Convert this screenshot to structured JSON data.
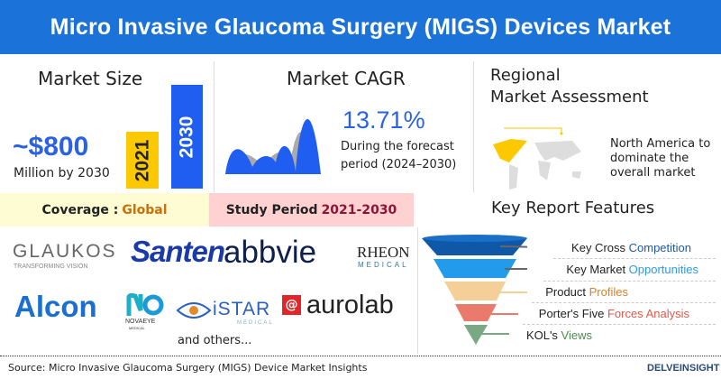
{
  "title": "Micro Invasive Glaucoma Surgery (MIGS) Devices Market",
  "market_size": {
    "heading": "Market Size",
    "value": "~$800",
    "subtitle": "Million by 2030",
    "bar_2021": "2021",
    "bar_2030": "2030"
  },
  "cagr": {
    "heading": "Market CAGR",
    "value": "13.71%",
    "line1": "During the forecast",
    "line2": "period (2024–2030)"
  },
  "regional": {
    "heading1": "Regional",
    "heading2": "Market Assessment",
    "line1": "North America to",
    "line2": "dominate the",
    "line3": "overall market"
  },
  "coverage": {
    "label": "Coverage : ",
    "value": "Global"
  },
  "study": {
    "label": "Study Period ",
    "value": "2021-2030"
  },
  "features": {
    "heading": "Key Report Features",
    "items": [
      {
        "a": "Key Cross ",
        "b": "Competition",
        "color": "#1a5ba8"
      },
      {
        "a": "Key Market ",
        "b": "Opportunities",
        "color": "#2a9be8"
      },
      {
        "a": "Product ",
        "b": "Profiles",
        "color": "#d9822b"
      },
      {
        "a": "Porter's Five ",
        "b": "Forces Analysis",
        "color": "#e4584a"
      },
      {
        "a": "KOL's ",
        "b": "Views",
        "color": "#4d8a4f"
      }
    ]
  },
  "logos": {
    "glaukos": "GLAUKOS",
    "glaukos_tag": "TRANSFORMING VISION",
    "santen": "Santen",
    "abbvie": "abbvie",
    "rheon": "RHEON",
    "rheon_sub": "MEDICAL",
    "alcon": "Alcon",
    "novaeye": "NOVAEYE",
    "novaeye_sub": "MEDICAL",
    "istar": "iSTAR",
    "istar_sub": "MEDICAL",
    "aurolab": "aurolab",
    "others": "and others..."
  },
  "source": "Source: Micro Invasive Glaucoma Surgery (MIGS) Device Market Insights",
  "brand": "DELVEINSIGHT"
}
